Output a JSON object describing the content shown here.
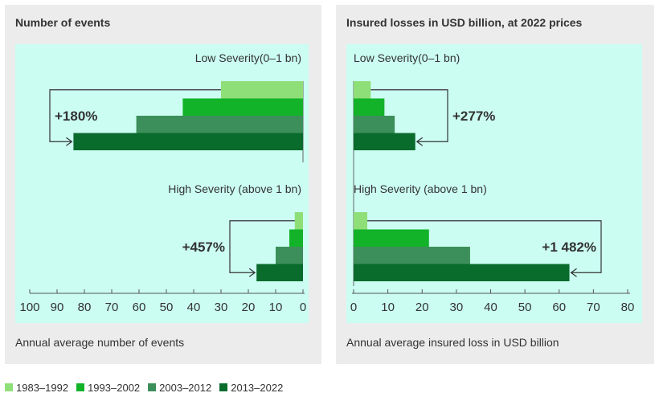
{
  "legend": [
    {
      "label": "1983–1992",
      "color": "#8fdf78"
    },
    {
      "label": "1993–2002",
      "color": "#12b329"
    },
    {
      "label": "2003–2012",
      "color": "#3c8f5a"
    },
    {
      "label": "2013–2022",
      "color": "#096b2c"
    }
  ],
  "chart_data": [
    {
      "type": "bar",
      "orientation": "horizontal",
      "title": "Number of events",
      "xlabel": "Annual average number of events",
      "xlim": [
        100,
        0
      ],
      "x_reversed": true,
      "xticks": [
        "100",
        "90",
        "80",
        "70",
        "60",
        "50",
        "40",
        "30",
        "20",
        "10",
        "0"
      ],
      "series_names": [
        "1983–1992",
        "1993–2002",
        "2003–2012",
        "2013–2022"
      ],
      "groups": [
        {
          "name": "Low Severity(0–1 bn)",
          "values": [
            30,
            44,
            61,
            84
          ],
          "annotation": "+180%"
        },
        {
          "name": "High Severity (above 1 bn)",
          "values": [
            3,
            5,
            10,
            17
          ],
          "annotation": "+457%"
        }
      ]
    },
    {
      "type": "bar",
      "orientation": "horizontal",
      "title": "Insured losses in USD billion, at 2022 prices",
      "xlabel": "Annual average insured loss in USD billion",
      "xlim": [
        0,
        80
      ],
      "xticks": [
        "0",
        "10",
        "20",
        "30",
        "40",
        "50",
        "60",
        "70",
        "80"
      ],
      "series_names": [
        "1983–1992",
        "1993–2002",
        "2003–2012",
        "2013–2022"
      ],
      "groups": [
        {
          "name": "Low Severity(0–1 bn)",
          "values": [
            5,
            9,
            12,
            18
          ],
          "annotation": "+277%"
        },
        {
          "name": "High Severity (above 1 bn)",
          "values": [
            4,
            22,
            34,
            63
          ],
          "annotation": "+1 482%"
        }
      ]
    }
  ]
}
